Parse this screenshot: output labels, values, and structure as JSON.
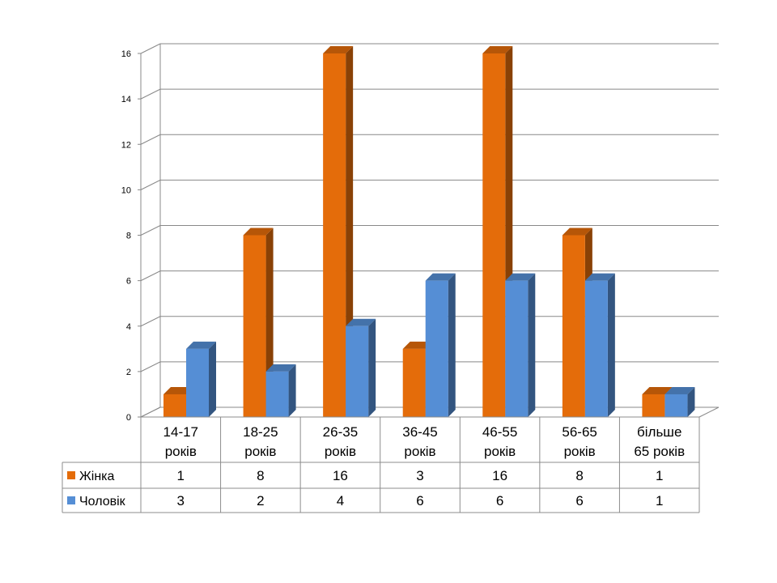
{
  "chart_data": {
    "type": "bar",
    "categories": [
      [
        "14-17",
        "років"
      ],
      [
        "18-25",
        "років"
      ],
      [
        "26-35",
        "років"
      ],
      [
        "36-45",
        "років"
      ],
      [
        "46-55",
        "років"
      ],
      [
        "56-65",
        "років"
      ],
      [
        "більше",
        "65 років"
      ]
    ],
    "series": [
      {
        "name": "Жінка",
        "color": "#E46C0A",
        "values": [
          1,
          8,
          16,
          3,
          16,
          8,
          1
        ]
      },
      {
        "name": "Чоловік",
        "color": "#558ED5",
        "values": [
          3,
          2,
          4,
          6,
          6,
          6,
          1
        ]
      }
    ],
    "yticks": [
      "0",
      "2",
      "4",
      "6",
      "8",
      "10",
      "12",
      "14",
      "16"
    ],
    "ylim": [
      0,
      16
    ],
    "grid": true,
    "style": "3d-clustered-column",
    "data_table": true,
    "legend": "data-table-left"
  }
}
